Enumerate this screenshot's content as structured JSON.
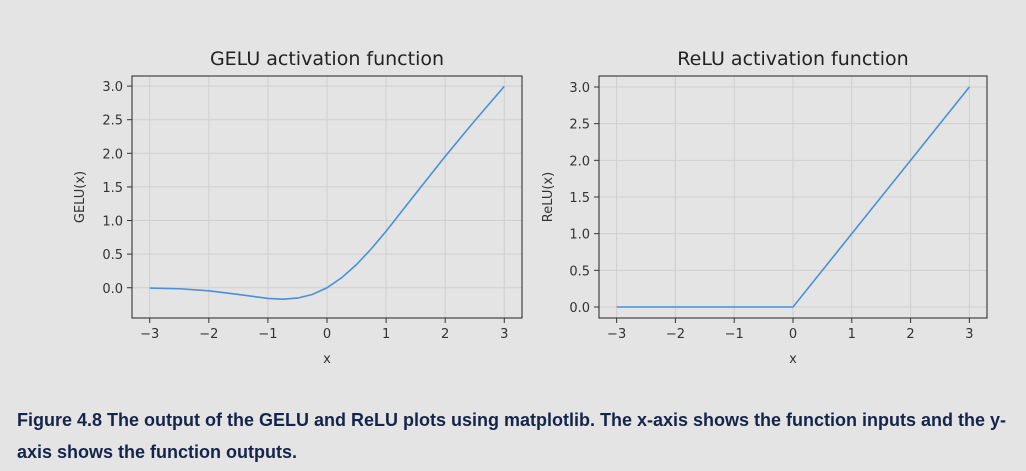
{
  "chart_data": [
    {
      "type": "line",
      "title": "GELU activation function",
      "xlabel": "x",
      "ylabel": "GELU(x)",
      "xlim": [
        -3.3,
        3.3
      ],
      "ylim": [
        -0.45,
        3.15
      ],
      "xticks": [
        -3,
        -2,
        -1,
        0,
        1,
        2,
        3
      ],
      "xtick_labels": [
        "−3",
        "−2",
        "−1",
        "0",
        "1",
        "2",
        "3"
      ],
      "yticks": [
        0.0,
        0.5,
        1.0,
        1.5,
        2.0,
        2.5,
        3.0
      ],
      "ytick_labels": [
        "0.0",
        "0.5",
        "1.0",
        "1.5",
        "2.0",
        "2.5",
        "3.0"
      ],
      "grid": true,
      "series": [
        {
          "color": "#4a90d9",
          "x": [
            -3,
            -2.5,
            -2,
            -1.5,
            -1,
            -0.75,
            -0.5,
            -0.25,
            0,
            0.25,
            0.5,
            0.75,
            1,
            1.5,
            2,
            2.5,
            3
          ],
          "y": [
            -0.004,
            -0.015,
            -0.045,
            -0.1,
            -0.159,
            -0.17,
            -0.154,
            -0.1,
            0,
            0.15,
            0.346,
            0.58,
            0.841,
            1.4,
            1.955,
            2.485,
            2.996
          ]
        }
      ]
    },
    {
      "type": "line",
      "title": "ReLU activation function",
      "xlabel": "x",
      "ylabel": "ReLU(x)",
      "xlim": [
        -3.3,
        3.3
      ],
      "ylim": [
        -0.15,
        3.15
      ],
      "xticks": [
        -3,
        -2,
        -1,
        0,
        1,
        2,
        3
      ],
      "xtick_labels": [
        "−3",
        "−2",
        "−1",
        "0",
        "1",
        "2",
        "3"
      ],
      "yticks": [
        0.0,
        0.5,
        1.0,
        1.5,
        2.0,
        2.5,
        3.0
      ],
      "ytick_labels": [
        "0.0",
        "0.5",
        "1.0",
        "1.5",
        "2.0",
        "2.5",
        "3.0"
      ],
      "grid": true,
      "series": [
        {
          "color": "#4a90d9",
          "x": [
            -3,
            -2,
            -1,
            0,
            1,
            2,
            3
          ],
          "y": [
            0,
            0,
            0,
            0,
            1,
            2,
            3
          ]
        }
      ]
    }
  ],
  "caption": "Figure 4.8 The output of the GELU and ReLU plots using matplotlib. The x-axis shows the function inputs and the y-axis shows the function outputs."
}
